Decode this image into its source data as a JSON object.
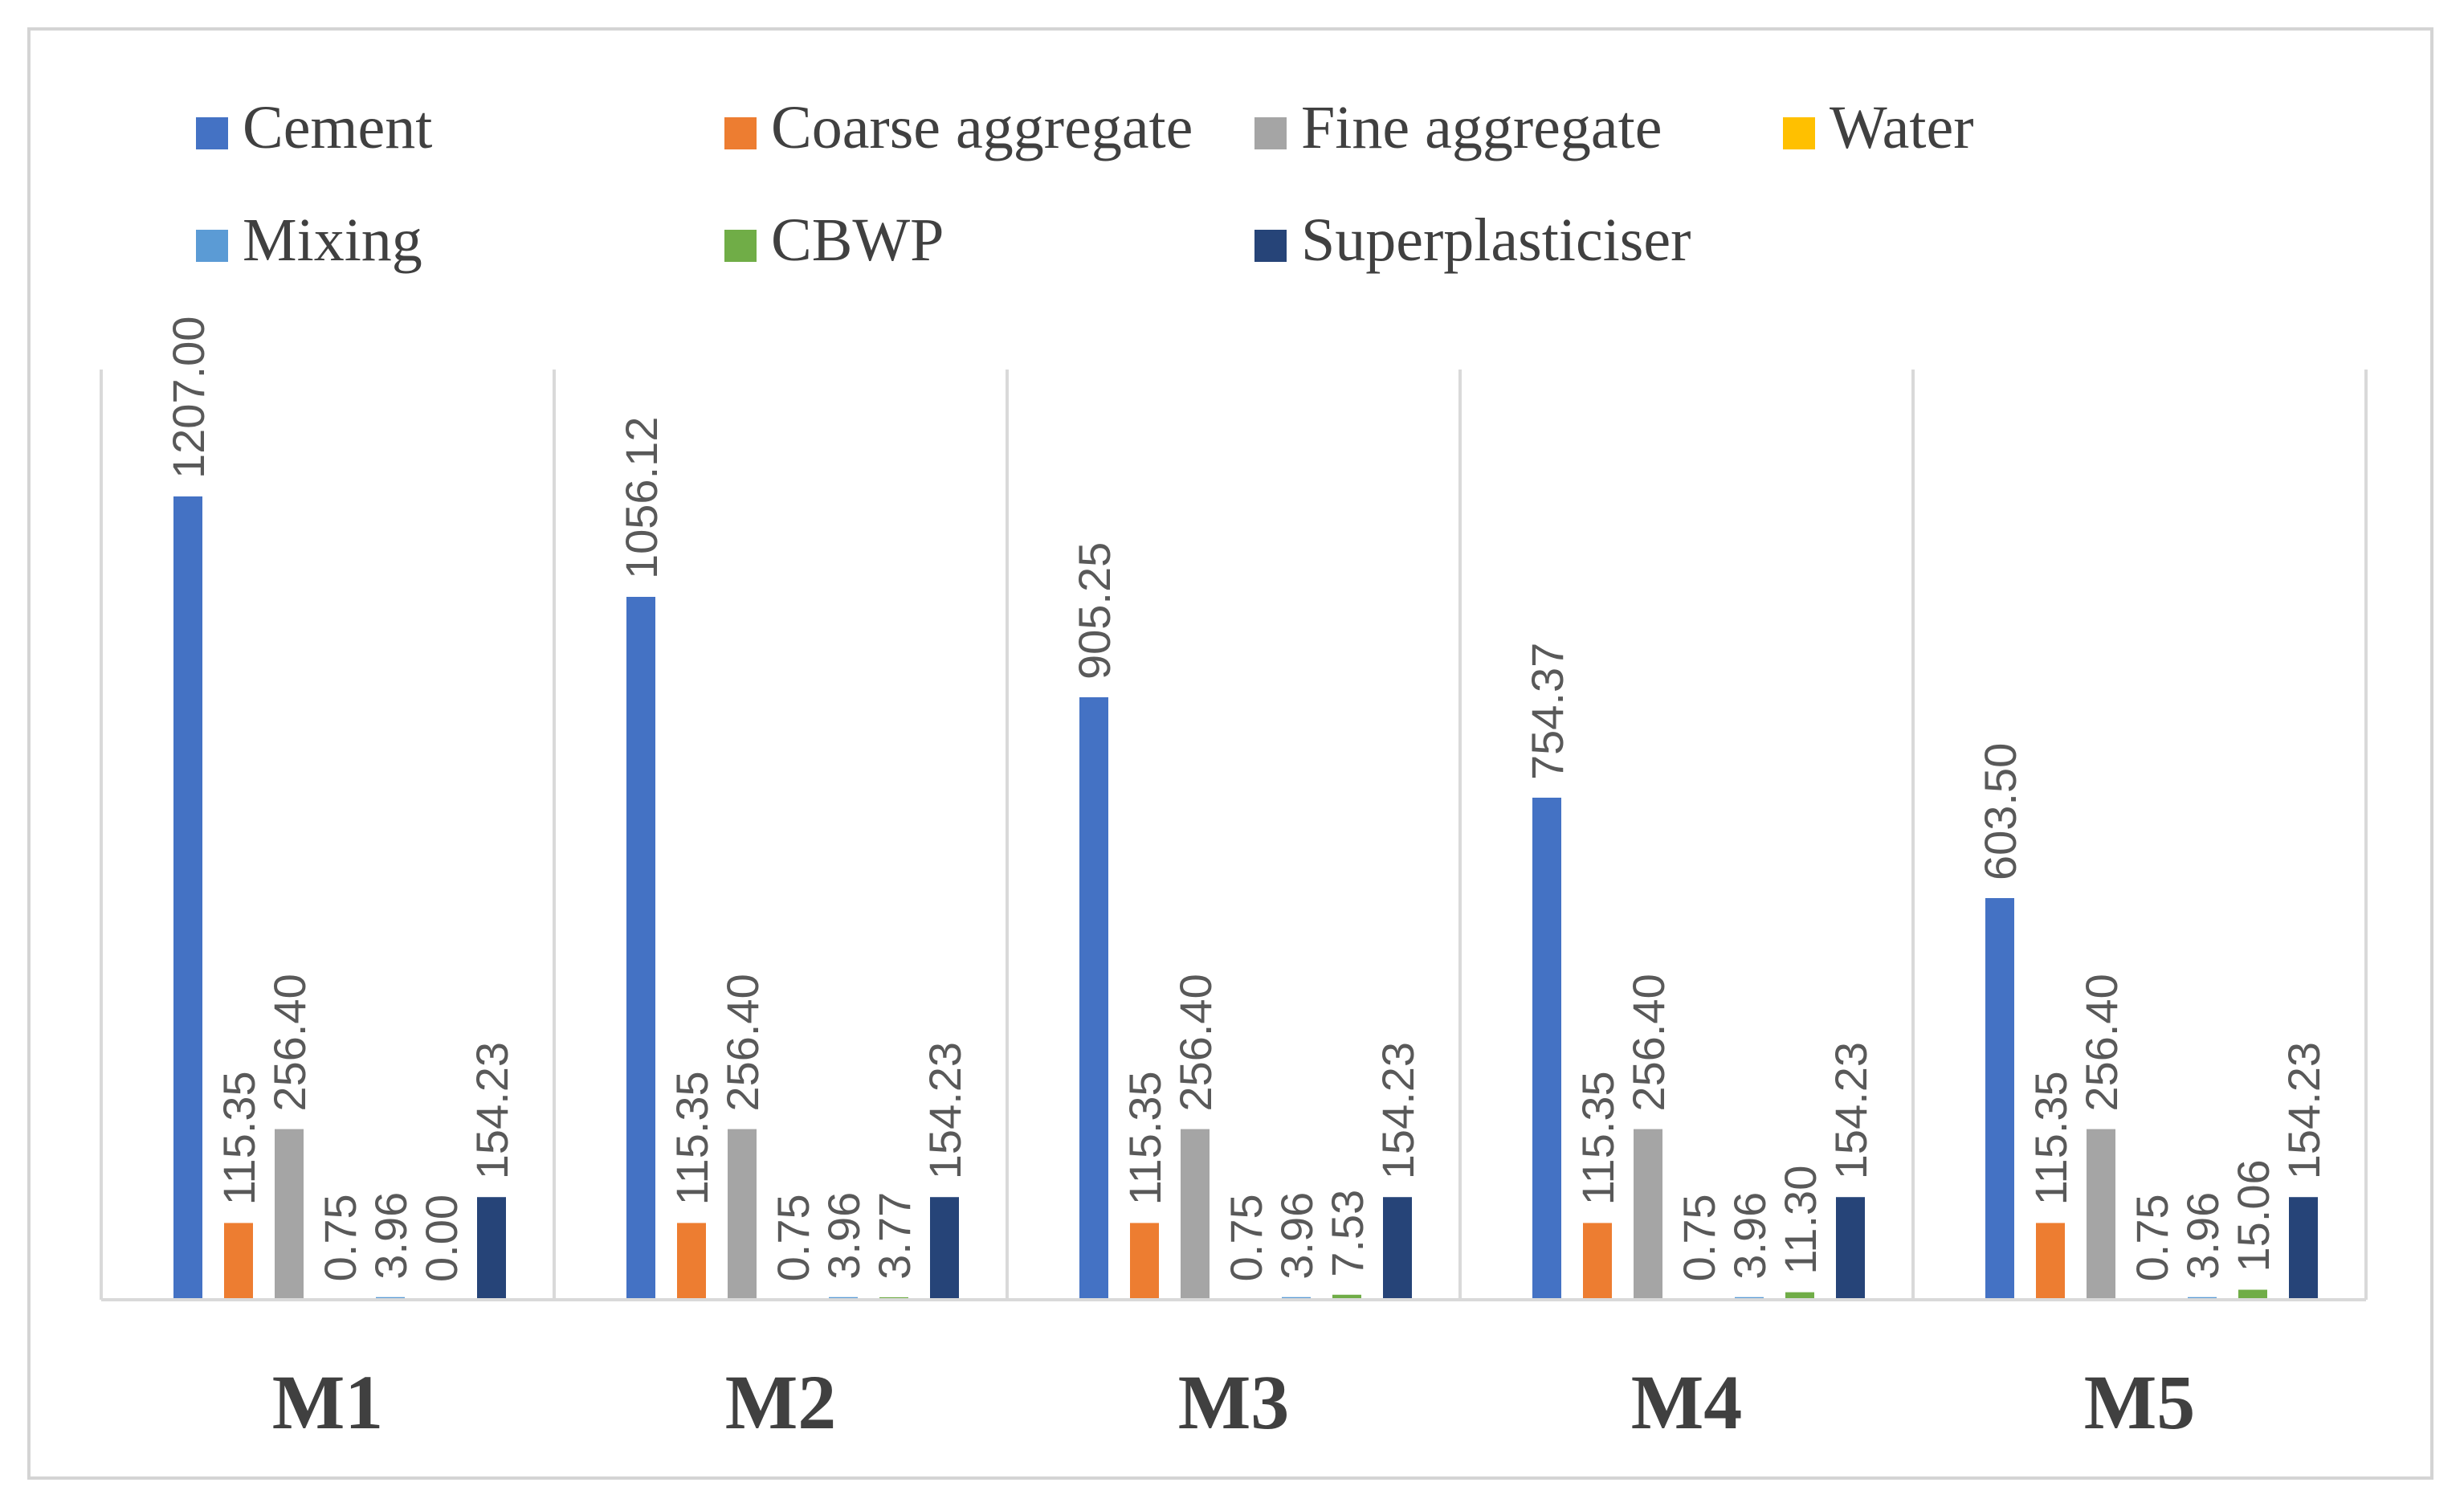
{
  "chart_data": {
    "type": "bar",
    "title": "",
    "xlabel": "",
    "ylabel": "",
    "ylim": [
      0,
      1207
    ],
    "grid": false,
    "legend_position": "top",
    "categories": [
      "M1",
      "M2",
      "M3",
      "M4",
      "M5"
    ],
    "series": [
      {
        "name": "Cement",
        "color": "#4472c4",
        "values": [
          1207.0,
          1056.12,
          905.25,
          754.37,
          603.5
        ],
        "labels": [
          "1207.00",
          "1056.12",
          "905.25",
          "754.37",
          "603.50"
        ]
      },
      {
        "name": "Coarse aggregate",
        "color": "#ed7d31",
        "values": [
          115.35,
          115.35,
          115.35,
          115.35,
          115.35
        ],
        "labels": [
          "115.35",
          "115.35",
          "115.35",
          "115.35",
          "115.35"
        ]
      },
      {
        "name": "Fine aggregate",
        "color": "#a5a5a5",
        "values": [
          256.4,
          256.4,
          256.4,
          256.4,
          256.4
        ],
        "labels": [
          "256.40",
          "256.40",
          "256.40",
          "256.40",
          "256.40"
        ]
      },
      {
        "name": "Water",
        "color": "#ffc000",
        "values": [
          0.75,
          0.75,
          0.75,
          0.75,
          0.75
        ],
        "labels": [
          "0.75",
          "0.75",
          "0.75",
          "0.75",
          "0.75"
        ]
      },
      {
        "name": "Mixing",
        "color": "#5b9bd5",
        "values": [
          3.96,
          3.96,
          3.96,
          3.96,
          3.96
        ],
        "labels": [
          "3.96",
          "3.96",
          "3.96",
          "3.96",
          "3.96"
        ]
      },
      {
        "name": "CBWP",
        "color": "#70ad47",
        "values": [
          0.0,
          3.77,
          7.53,
          11.3,
          15.06
        ],
        "labels": [
          "0.00",
          "3.77",
          "7.53",
          "11.30",
          "15.06"
        ]
      },
      {
        "name": "Superplasticiser",
        "color": "#264478",
        "values": [
          154.23,
          154.23,
          154.23,
          154.23,
          154.23
        ],
        "labels": [
          "154.23",
          "154.23",
          "154.23",
          "154.23",
          "154.23"
        ]
      }
    ]
  }
}
